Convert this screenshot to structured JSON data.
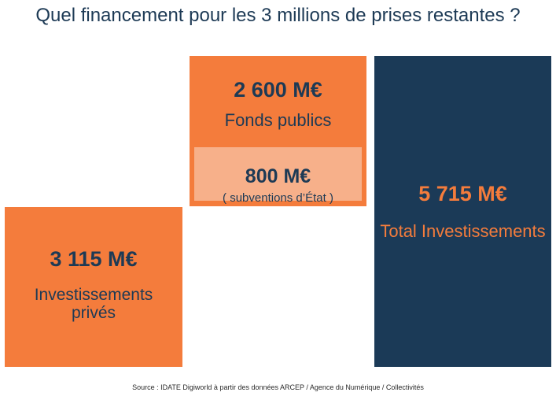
{
  "title": "Quel financement pour les 3 millions de prises restantes ?",
  "chart_data": {
    "type": "bar",
    "title": "Quel financement pour les 3 millions de prises restantes ?",
    "unit": "M€",
    "series": [
      {
        "name": "Investissements privés",
        "value": 3115
      },
      {
        "name": "Fonds publics",
        "value": 2600
      },
      {
        "name": "subventions d'État",
        "value": 800
      },
      {
        "name": "Total Investissements",
        "value": 5715
      }
    ]
  },
  "blocks": {
    "private": {
      "value": "3 115 M€",
      "label": "Investissements privés"
    },
    "public": {
      "value": "2 600 M€",
      "label": "Fonds publics"
    },
    "subsidy": {
      "value": "800 M€",
      "label": "( subventions d’État )"
    },
    "total": {
      "value": "5 715 M€",
      "label": "Total Investissements"
    }
  },
  "source": "Source : IDATE Digiworld à partir des données ARCEP / Agence du Numérique / Collectivités",
  "colors": {
    "orange": "#f47c3c",
    "light_orange": "#f7b08a",
    "navy": "#1b3a57",
    "text": "#1d3a55"
  }
}
